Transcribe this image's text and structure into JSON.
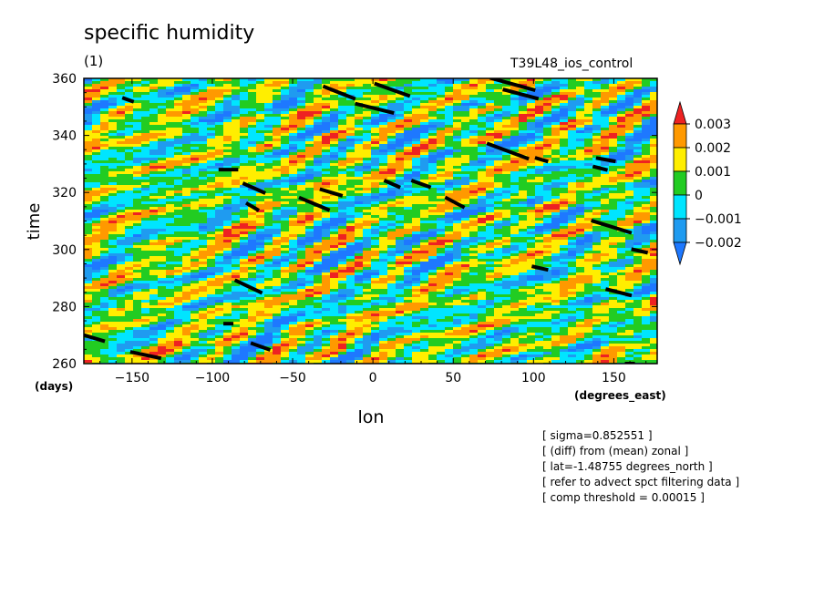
{
  "header": {
    "title": "specific humidity",
    "subtitle": "(1)",
    "experiment": "T39L48_ios_control"
  },
  "info_lines": [
    "[ sigma=0.852551 ]",
    "[ (diff) from (mean) zonal ]",
    "[ lat=-1.48755 degrees_north ]",
    "[ refer to advect spct filtering data ]",
    "[ comp threshold = 0.00015 ]"
  ],
  "chart_data": {
    "type": "heatmap",
    "title": "specific humidity",
    "subtitle": "(1)",
    "xlabel": "lon",
    "xunits": "(degrees_east)",
    "ylabel": "time",
    "yunits": "(days)",
    "xlim": [
      -180,
      177
    ],
    "ylim": [
      260,
      360
    ],
    "xticks": [
      -150,
      -100,
      -50,
      0,
      50,
      100,
      150
    ],
    "xtick_labels": [
      "−150",
      "−100",
      "−50",
      "0",
      "50",
      "100",
      "150"
    ],
    "yticks": [
      260,
      280,
      300,
      320,
      340,
      360
    ],
    "ytick_labels": [
      "260",
      "280",
      "300",
      "320",
      "340",
      "360"
    ],
    "colorbar": {
      "levels": [
        -0.002,
        -0.001,
        0,
        0.001,
        0.002,
        0.003
      ],
      "labels": [
        "−0.002",
        "−0.001",
        "0",
        "0.001",
        "0.002",
        "0.003"
      ],
      "colors": [
        "#1e78ff",
        "#1f9bf0",
        "#00e5ff",
        "#22cc22",
        "#ffee00",
        "#ff9900",
        "#ee2222"
      ]
    },
    "threshold_tracks": [
      {
        "lon": [
          -150,
          -133
        ],
        "time": [
          264,
          262
        ]
      },
      {
        "lon": [
          -180,
          -168
        ],
        "time": [
          270,
          268
        ]
      },
      {
        "lon": [
          -92,
          -88
        ],
        "time": [
          274,
          274
        ]
      },
      {
        "lon": [
          -75,
          -65
        ],
        "time": [
          267,
          265
        ]
      },
      {
        "lon": [
          -85,
          -70
        ],
        "time": [
          289,
          285
        ]
      },
      {
        "lon": [
          -95,
          -85
        ],
        "time": [
          328,
          328
        ]
      },
      {
        "lon": [
          -80,
          -68
        ],
        "time": [
          323,
          320
        ]
      },
      {
        "lon": [
          -78,
          -72
        ],
        "time": [
          316,
          314
        ]
      },
      {
        "lon": [
          -45,
          -28
        ],
        "time": [
          318,
          314
        ]
      },
      {
        "lon": [
          -32,
          -20
        ],
        "time": [
          321,
          319
        ]
      },
      {
        "lon": [
          8,
          16
        ],
        "time": [
          324,
          322
        ]
      },
      {
        "lon": [
          25,
          35
        ],
        "time": [
          324,
          322
        ]
      },
      {
        "lon": [
          46,
          56
        ],
        "time": [
          318,
          315
        ]
      },
      {
        "lon": [
          -30,
          -12
        ],
        "time": [
          357,
          353
        ]
      },
      {
        "lon": [
          -10,
          12
        ],
        "time": [
          351,
          348
        ]
      },
      {
        "lon": [
          2,
          22
        ],
        "time": [
          358,
          354
        ]
      },
      {
        "lon": [
          -155,
          -150
        ],
        "time": [
          353,
          352
        ]
      },
      {
        "lon": [
          72,
          96
        ],
        "time": [
          337,
          332
        ]
      },
      {
        "lon": [
          74,
          100
        ],
        "time": [
          360,
          356
        ]
      },
      {
        "lon": [
          82,
          102
        ],
        "time": [
          356,
          353
        ]
      },
      {
        "lon": [
          102,
          108
        ],
        "time": [
          332,
          331
        ]
      },
      {
        "lon": [
          138,
          145
        ],
        "time": [
          329,
          328
        ]
      },
      {
        "lon": [
          140,
          150
        ],
        "time": [
          332,
          331
        ]
      },
      {
        "lon": [
          137,
          160
        ],
        "time": [
          310,
          306
        ]
      },
      {
        "lon": [
          146,
          160
        ],
        "time": [
          286,
          284
        ]
      },
      {
        "lon": [
          100,
          108
        ],
        "time": [
          294,
          293
        ]
      },
      {
        "lon": [
          162,
          170
        ],
        "time": [
          300,
          299
        ]
      },
      {
        "lon": [
          158,
          162
        ],
        "time": [
          260,
          260
        ]
      }
    ]
  }
}
